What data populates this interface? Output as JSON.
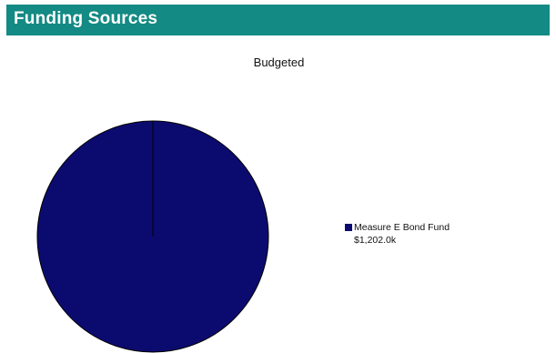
{
  "header": {
    "title": "Funding Sources"
  },
  "colors": {
    "header_bg": "#138a83",
    "pie_fill": "#0b0b6f",
    "pie_stroke": "#000000"
  },
  "chart_data": {
    "type": "pie",
    "title": "Budgeted",
    "legend_position": "right",
    "slices": [
      {
        "label": "Measure E Bond Fund",
        "value": 1202.0,
        "value_label": "$1,202.0k",
        "color": "#0b0b6f"
      }
    ]
  }
}
